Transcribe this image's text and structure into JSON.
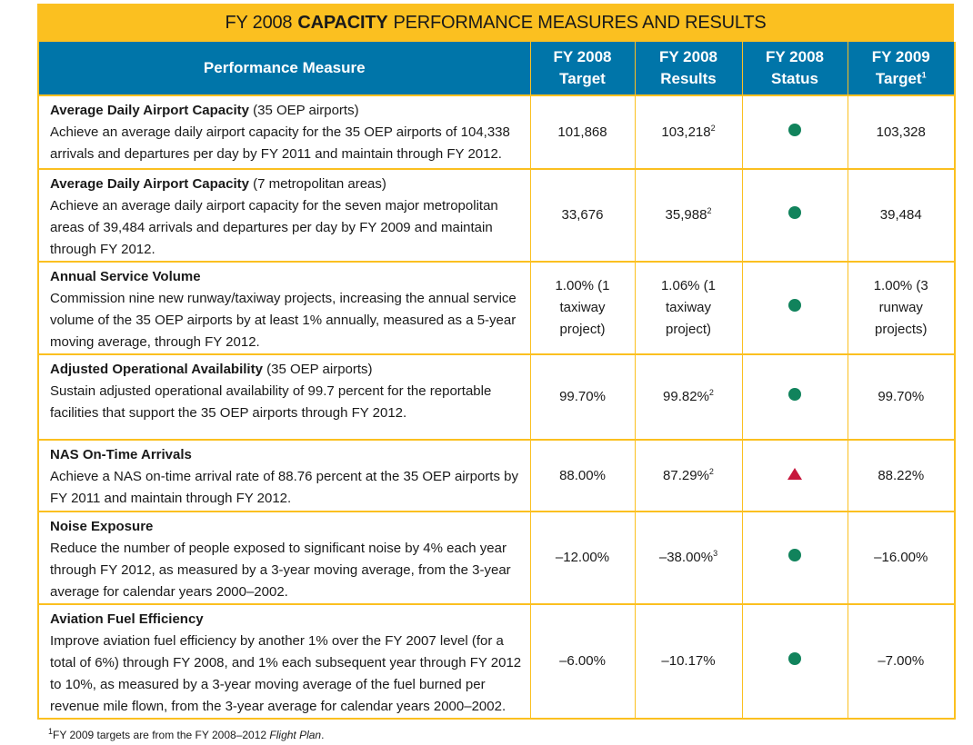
{
  "title": {
    "prefix": "FY 2008",
    "emphasis": "CAPACITY",
    "suffix": "PERFORMANCE MEASURES AND RESULTS"
  },
  "columns": [
    {
      "line1": "Performance Measure",
      "line2": ""
    },
    {
      "line1": "FY 2008",
      "line2": "Target",
      "sup": ""
    },
    {
      "line1": "FY 2008",
      "line2": "Results",
      "sup": ""
    },
    {
      "line1": "FY 2008",
      "line2": "Status",
      "sup": ""
    },
    {
      "line1": "FY 2009",
      "line2": "Target",
      "sup": "1"
    }
  ],
  "rows": [
    {
      "name": "Average Daily Airport Capacity",
      "qualifier": "(35 OEP airports)",
      "desc": "Achieve an average daily airport capacity for the 35 OEP airports of 104,338 arrivals and departures per day by FY 2011 and maintain through FY 2012.",
      "target": "101,868",
      "result": "103,218",
      "result_sup": "2",
      "status": "met",
      "target_2009": "103,328"
    },
    {
      "name": "Average Daily Airport Capacity",
      "qualifier": "(7 metropolitan areas)",
      "desc": "Achieve an average daily airport capacity for the seven major metropolitan areas of 39,484 arrivals and departures per day by FY 2009 and maintain through FY 2012.",
      "target": "33,676",
      "result": "35,988",
      "result_sup": "2",
      "status": "met",
      "target_2009": "39,484"
    },
    {
      "name": "Annual Service Volume",
      "qualifier": "",
      "desc": "Commission nine new runway/taxiway projects, increasing the annual service volume of the 35 OEP airports by at least 1% annually, measured as a 5-year moving average, through FY 2012.",
      "target": "1.00% (1 taxiway project)",
      "result": "1.06% (1 taxiway project)",
      "result_sup": "",
      "status": "met",
      "target_2009": "1.00% (3 runway projects)"
    },
    {
      "name": "Adjusted Operational Availability",
      "qualifier": "(35 OEP airports)",
      "desc": "Sustain adjusted operational availability of 99.7 percent for the reportable facilities that support the 35 OEP airports through FY 2012.",
      "target": "99.70%",
      "result": "99.82%",
      "result_sup": "2",
      "status": "met",
      "target_2009": "99.70%"
    },
    {
      "name": "NAS On-Time Arrivals",
      "qualifier": "",
      "desc": "Achieve a NAS on-time arrival rate of 88.76 percent at the 35 OEP airports by FY 2011 and maintain through FY 2012.",
      "target": "88.00%",
      "result": "87.29%",
      "result_sup": "2",
      "status": "not-met",
      "target_2009": "88.22%"
    },
    {
      "name": "Noise Exposure",
      "qualifier": "",
      "desc": "Reduce the number of people exposed to significant noise by 4% each year through FY 2012, as measured by a 3-year moving average, from the 3-year average for calendar years 2000–2002.",
      "target": "–12.00%",
      "result": "–38.00%",
      "result_sup": "3",
      "status": "met",
      "target_2009": "–16.00%"
    },
    {
      "name": "Aviation Fuel Efficiency",
      "qualifier": "",
      "desc": "Improve aviation fuel efficiency by another 1% over the FY 2007 level (for a total of 6%) through FY 2008, and 1% each subsequent year through FY 2012 to 10%, as measured by a 3-year moving average of the fuel burned per revenue mile flown, from the 3-year average for calendar years 2000–2002.",
      "target": "–6.00%",
      "result": "–10.17%",
      "result_sup": "",
      "status": "met",
      "target_2009": "–7.00%"
    }
  ],
  "status_icons": {
    "met": "green-circle-icon",
    "not-met": "red-triangle-icon"
  },
  "colors": {
    "title_bg": "#fbc020",
    "header_bg": "#0075a9",
    "met": "#11835c",
    "not_met": "#c7173d"
  },
  "footnote": {
    "marker": "1",
    "text": "FY 2009 targets are from the FY 2008–2012",
    "italic": "Flight Plan",
    "end": "."
  }
}
